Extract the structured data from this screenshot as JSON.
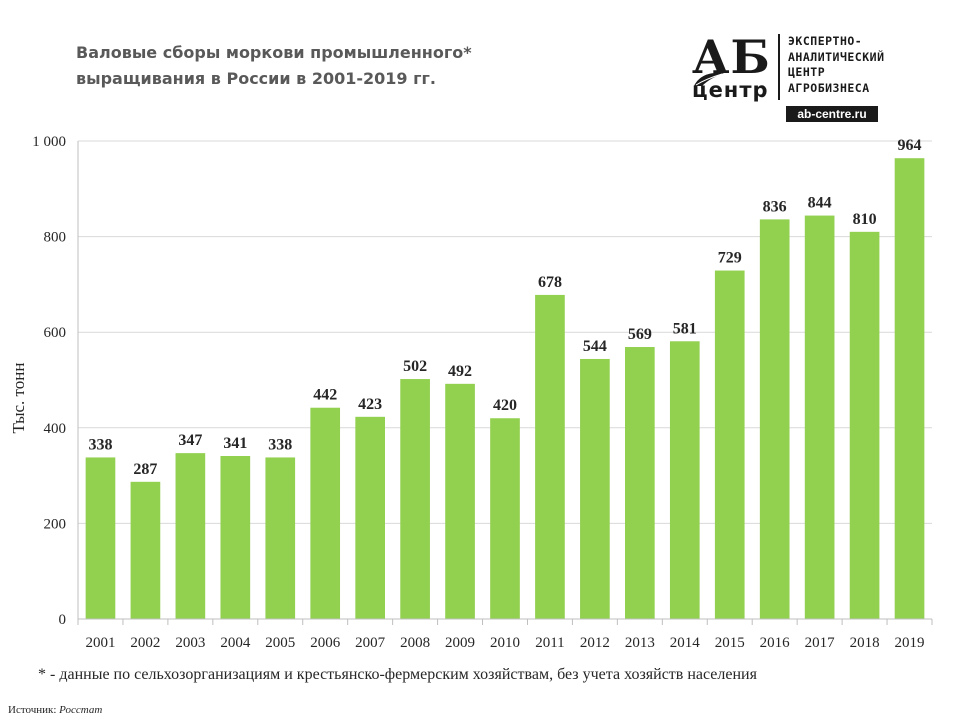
{
  "title_lines": [
    "Валовые сборы моркови промышленного*",
    "выращивания  в России в 2001-2019 гг."
  ],
  "logo": {
    "letters": "АБ",
    "word": "центр",
    "lines": [
      "ЭКСПЕРТНО-",
      "АНАЛИТИЧЕСКИЙ",
      "ЦЕНТР",
      "АГРОБИЗНЕСА"
    ],
    "site": "ab-centre.ru",
    "icon": "leaf-icon"
  },
  "chart_data": {
    "type": "bar",
    "categories": [
      "2001",
      "2002",
      "2003",
      "2004",
      "2005",
      "2006",
      "2007",
      "2008",
      "2009",
      "2010",
      "2011",
      "2012",
      "2013",
      "2014",
      "2015",
      "2016",
      "2017",
      "2018",
      "2019"
    ],
    "values": [
      338,
      287,
      347,
      341,
      338,
      442,
      423,
      502,
      492,
      420,
      678,
      544,
      569,
      581,
      729,
      836,
      844,
      810,
      964
    ],
    "ylabel": "Тыс. тонн",
    "ylim": [
      0,
      1000
    ],
    "yticks": [
      0,
      200,
      400,
      600,
      800,
      1000
    ],
    "ytick_labels": [
      "0",
      "200",
      "400",
      "600",
      "800",
      "1 000"
    ],
    "grid": true,
    "bar_color": "#92d050",
    "data_labels": true
  },
  "footnote": "* - данные по сельхозорганизациям и крестьянско-фермерским хозяйствам, без учета хозяйств населения",
  "source": {
    "label": "Источник:",
    "value": "Росстат"
  }
}
